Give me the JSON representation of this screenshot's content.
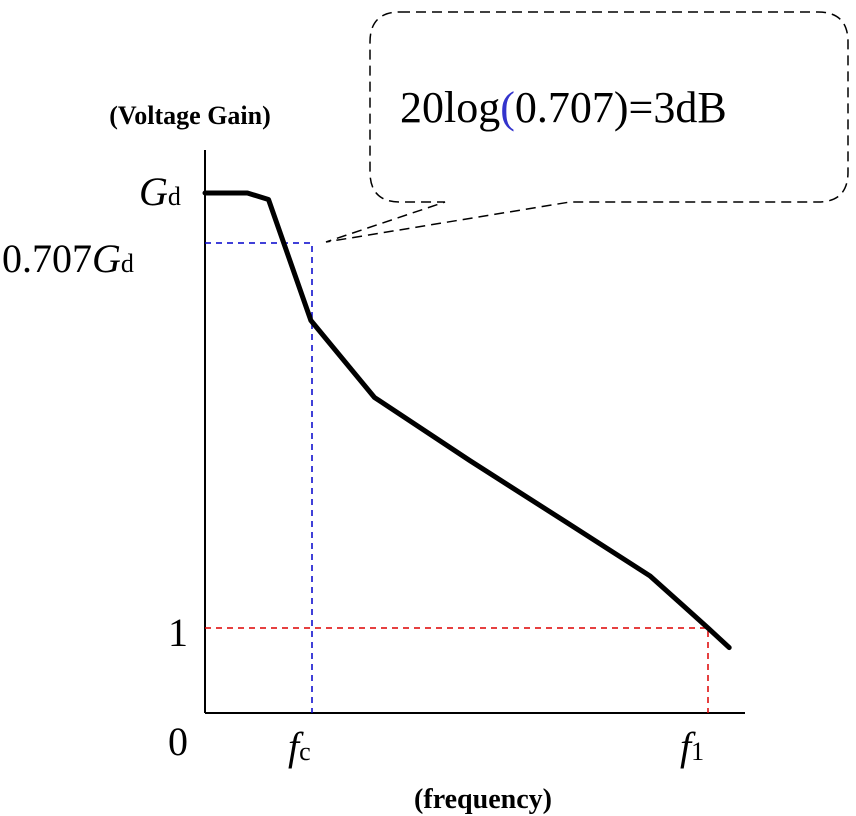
{
  "chart_data": {
    "type": "line",
    "title": "",
    "ylabel": "(Voltage Gain)",
    "xlabel": "(frequency)",
    "origin_label": "0",
    "y_ticks": [
      {
        "main": "G",
        "sub": "d",
        "prefix": "",
        "value": 1.0
      },
      {
        "main": "G",
        "sub": "d",
        "prefix": "0.707",
        "value": 0.707
      },
      {
        "main": "1",
        "sub": "",
        "prefix": "",
        "value": 0.12
      }
    ],
    "x_ticks": [
      {
        "main": "f",
        "sub": "c",
        "value": 0.2
      },
      {
        "main": "f",
        "sub": "1",
        "value": 0.95
      }
    ],
    "series": [
      {
        "color": "#000000",
        "points": [
          [
            0.0,
            1.0
          ],
          [
            0.08,
            1.0
          ],
          [
            0.12,
            0.985
          ],
          [
            0.2,
            0.707
          ],
          [
            0.32,
            0.53
          ],
          [
            0.5,
            0.385
          ],
          [
            0.68,
            0.245
          ],
          [
            0.84,
            0.12
          ],
          [
            0.9,
            0.055
          ],
          [
            0.95,
            0.0
          ],
          [
            0.99,
            -0.045
          ]
        ]
      }
    ],
    "reference_lines": [
      {
        "color": "#0000cc",
        "from": [
          0.0,
          0.707
        ],
        "corner": [
          0.2,
          0.707
        ],
        "to": [
          0.2,
          0.0
        ]
      },
      {
        "color": "#dd0000",
        "from": [
          0.0,
          0.12
        ],
        "corner": [
          0.95,
          0.12
        ],
        "to": [
          0.95,
          0.0
        ]
      }
    ],
    "annotation": {
      "text_before": "20log",
      "paren_open": "(",
      "text_after": "0.707)=3dB",
      "paren_color": "#3333cc",
      "points_to": [
        0.2,
        0.707
      ]
    }
  }
}
